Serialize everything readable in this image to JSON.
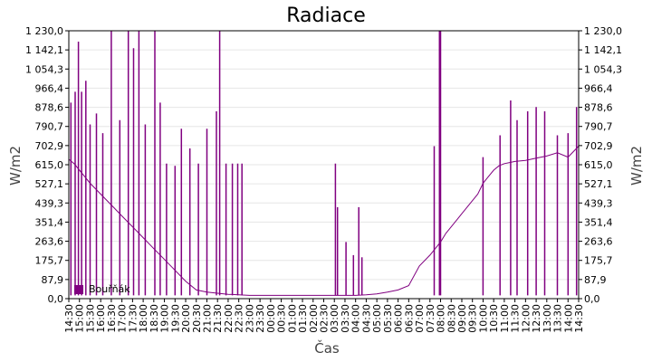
{
  "chart_data": {
    "type": "line",
    "title": "Radiace",
    "xlabel": "Čas",
    "ylabel": "W/m2",
    "ylim": [
      0,
      1230
    ],
    "yticks": [
      "0,0",
      "87,9",
      "175,7",
      "263,6",
      "351,4",
      "439,3",
      "527,1",
      "615,0",
      "702,9",
      "790,7",
      "878,6",
      "966,4",
      "1 054,3",
      "1 142,1",
      "1 230,0"
    ],
    "xticks": [
      "14:30",
      "15:00",
      "15:30",
      "16:00",
      "16:30",
      "17:00",
      "17:30",
      "18:00",
      "18:30",
      "19:00",
      "19:30",
      "20:00",
      "20:30",
      "21:00",
      "21:30",
      "22:00",
      "22:30",
      "23:00",
      "23:30",
      "00:00",
      "00:30",
      "01:00",
      "01:30",
      "02:00",
      "02:30",
      "03:00",
      "03:30",
      "04:00",
      "04:30",
      "05:00",
      "05:30",
      "06:00",
      "06:30",
      "07:00",
      "07:30",
      "08:00",
      "08:30",
      "09:00",
      "09:30",
      "10:00",
      "10:30",
      "11:00",
      "11:30",
      "12:00",
      "12:30",
      "13:00",
      "13:30",
      "14:00",
      "14:30"
    ],
    "grid": true,
    "legend_position": "bottom-left",
    "series": [
      {
        "name": "Bouřňák",
        "color": "#800080",
        "x_hours": [
          0.0,
          0.25,
          0.5,
          0.75,
          1.0,
          1.5,
          2.0,
          2.5,
          3.0,
          3.5,
          4.0,
          4.5,
          5.0,
          5.5,
          6.0,
          6.5,
          7.0,
          7.5,
          8.0,
          8.5,
          9.0,
          9.5,
          10.0,
          10.5,
          11.0,
          11.5,
          12.0,
          12.5,
          13.0,
          13.5,
          14.0,
          14.5,
          15.0,
          15.5,
          16.0,
          16.5,
          17.0,
          17.5,
          17.75,
          18.0,
          18.25,
          18.5,
          18.75,
          19.0,
          19.25,
          19.5,
          19.75,
          20.0,
          20.25,
          20.5,
          20.75,
          21.0,
          21.5,
          22.0,
          22.5,
          23.0,
          23.5,
          24.0
        ],
        "values": [
          640,
          620,
          590,
          560,
          530,
          480,
          430,
          380,
          330,
          280,
          230,
          180,
          130,
          80,
          40,
          30,
          25,
          20,
          18,
          15,
          15,
          15,
          15,
          15,
          15,
          15,
          15,
          15,
          15,
          15,
          18,
          22,
          30,
          40,
          60,
          150,
          200,
          260,
          300,
          330,
          360,
          390,
          420,
          450,
          480,
          530,
          560,
          590,
          610,
          620,
          625,
          630,
          635,
          645,
          655,
          670,
          650,
          700
        ],
        "spikes": [
          {
            "x": 0.1,
            "y": 900
          },
          {
            "x": 0.3,
            "y": 950
          },
          {
            "x": 0.45,
            "y": 1180
          },
          {
            "x": 0.6,
            "y": 950
          },
          {
            "x": 0.8,
            "y": 1000
          },
          {
            "x": 1.0,
            "y": 800
          },
          {
            "x": 1.3,
            "y": 850
          },
          {
            "x": 1.6,
            "y": 760
          },
          {
            "x": 2.0,
            "y": 1230
          },
          {
            "x": 2.4,
            "y": 820
          },
          {
            "x": 2.8,
            "y": 1230
          },
          {
            "x": 3.05,
            "y": 1150
          },
          {
            "x": 3.3,
            "y": 1230
          },
          {
            "x": 3.6,
            "y": 800
          },
          {
            "x": 4.05,
            "y": 1230
          },
          {
            "x": 4.3,
            "y": 900
          },
          {
            "x": 4.6,
            "y": 620
          },
          {
            "x": 5.0,
            "y": 610
          },
          {
            "x": 5.3,
            "y": 780
          },
          {
            "x": 5.7,
            "y": 690
          },
          {
            "x": 6.1,
            "y": 620
          },
          {
            "x": 6.5,
            "y": 780
          },
          {
            "x": 6.95,
            "y": 860
          },
          {
            "x": 7.1,
            "y": 1230
          },
          {
            "x": 7.4,
            "y": 620
          },
          {
            "x": 7.7,
            "y": 620
          },
          {
            "x": 7.95,
            "y": 620
          },
          {
            "x": 8.15,
            "y": 620
          },
          {
            "x": 12.55,
            "y": 620
          },
          {
            "x": 12.65,
            "y": 420
          },
          {
            "x": 13.05,
            "y": 260
          },
          {
            "x": 13.4,
            "y": 200
          },
          {
            "x": 13.65,
            "y": 420
          },
          {
            "x": 13.8,
            "y": 190
          },
          {
            "x": 17.2,
            "y": 700
          },
          {
            "x": 17.45,
            "y": 1230
          },
          {
            "x": 17.5,
            "y": 1230
          },
          {
            "x": 19.5,
            "y": 650
          },
          {
            "x": 20.3,
            "y": 750
          },
          {
            "x": 20.8,
            "y": 910
          },
          {
            "x": 21.1,
            "y": 820
          },
          {
            "x": 21.6,
            "y": 860
          },
          {
            "x": 22.0,
            "y": 880
          },
          {
            "x": 22.4,
            "y": 860
          },
          {
            "x": 23.0,
            "y": 750
          },
          {
            "x": 23.5,
            "y": 760
          },
          {
            "x": 23.9,
            "y": 880
          }
        ]
      }
    ]
  }
}
